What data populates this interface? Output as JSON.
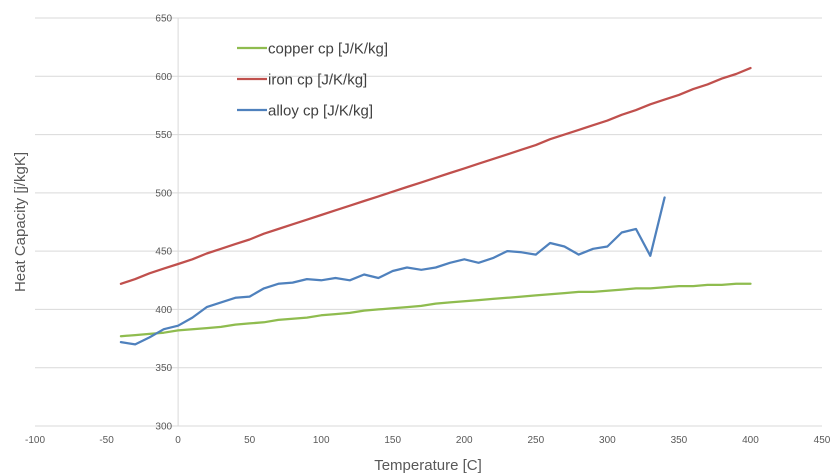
{
  "chart_data": {
    "type": "line",
    "title": "",
    "xlabel": "Temperature [C]",
    "ylabel": "Heat Capacity [j/kgK]",
    "xlim": [
      -100,
      450
    ],
    "ylim": [
      300,
      650
    ],
    "xticks": [
      -100,
      -50,
      0,
      50,
      100,
      150,
      200,
      250,
      300,
      350,
      400,
      450
    ],
    "yticks": [
      300,
      350,
      400,
      450,
      500,
      550,
      600,
      650
    ],
    "grid": "horizontal",
    "legend_position": "top-left",
    "series": [
      {
        "name": "copper cp [J/K/kg]",
        "color": "#8fbc4f",
        "x": [
          -40,
          -30,
          -20,
          -10,
          0,
          10,
          20,
          30,
          40,
          50,
          60,
          70,
          80,
          90,
          100,
          110,
          120,
          130,
          140,
          150,
          160,
          170,
          180,
          190,
          200,
          210,
          220,
          230,
          240,
          250,
          260,
          270,
          280,
          290,
          300,
          310,
          320,
          330,
          340,
          350,
          360,
          370,
          380,
          390,
          400
        ],
        "y": [
          377,
          378,
          379,
          380,
          382,
          383,
          384,
          385,
          387,
          388,
          389,
          391,
          392,
          393,
          395,
          396,
          397,
          399,
          400,
          401,
          402,
          403,
          405,
          406,
          407,
          408,
          409,
          410,
          411,
          412,
          413,
          414,
          415,
          415,
          416,
          417,
          418,
          418,
          419,
          420,
          420,
          421,
          421,
          422,
          422
        ]
      },
      {
        "name": "iron cp [J/K/kg]",
        "color": "#c0504d",
        "x": [
          -40,
          -30,
          -20,
          -10,
          0,
          10,
          20,
          30,
          40,
          50,
          60,
          70,
          80,
          90,
          100,
          110,
          120,
          130,
          140,
          150,
          160,
          170,
          180,
          190,
          200,
          210,
          220,
          230,
          240,
          250,
          260,
          270,
          280,
          290,
          300,
          310,
          320,
          330,
          340,
          350,
          360,
          370,
          380,
          390,
          400
        ],
        "y": [
          422,
          426,
          431,
          435,
          439,
          443,
          448,
          452,
          456,
          460,
          465,
          469,
          473,
          477,
          481,
          485,
          489,
          493,
          497,
          501,
          505,
          509,
          513,
          517,
          521,
          525,
          529,
          533,
          537,
          541,
          546,
          550,
          554,
          558,
          562,
          567,
          571,
          576,
          580,
          584,
          589,
          593,
          598,
          602,
          607
        ]
      },
      {
        "name": "alloy cp [J/K/kg]",
        "color": "#4f81bd",
        "x": [
          -40,
          -30,
          -20,
          -10,
          0,
          10,
          20,
          30,
          40,
          50,
          60,
          70,
          80,
          90,
          100,
          110,
          120,
          130,
          140,
          150,
          160,
          170,
          180,
          190,
          200,
          210,
          220,
          230,
          240,
          250,
          260,
          270,
          280,
          290,
          300,
          310,
          320,
          330,
          340
        ],
        "y": [
          372,
          370,
          376,
          383,
          386,
          393,
          402,
          406,
          410,
          411,
          418,
          422,
          423,
          426,
          425,
          427,
          425,
          430,
          427,
          433,
          436,
          434,
          436,
          440,
          443,
          440,
          444,
          450,
          449,
          447,
          457,
          454,
          447,
          452,
          454,
          466,
          469,
          446,
          496
        ]
      }
    ]
  }
}
